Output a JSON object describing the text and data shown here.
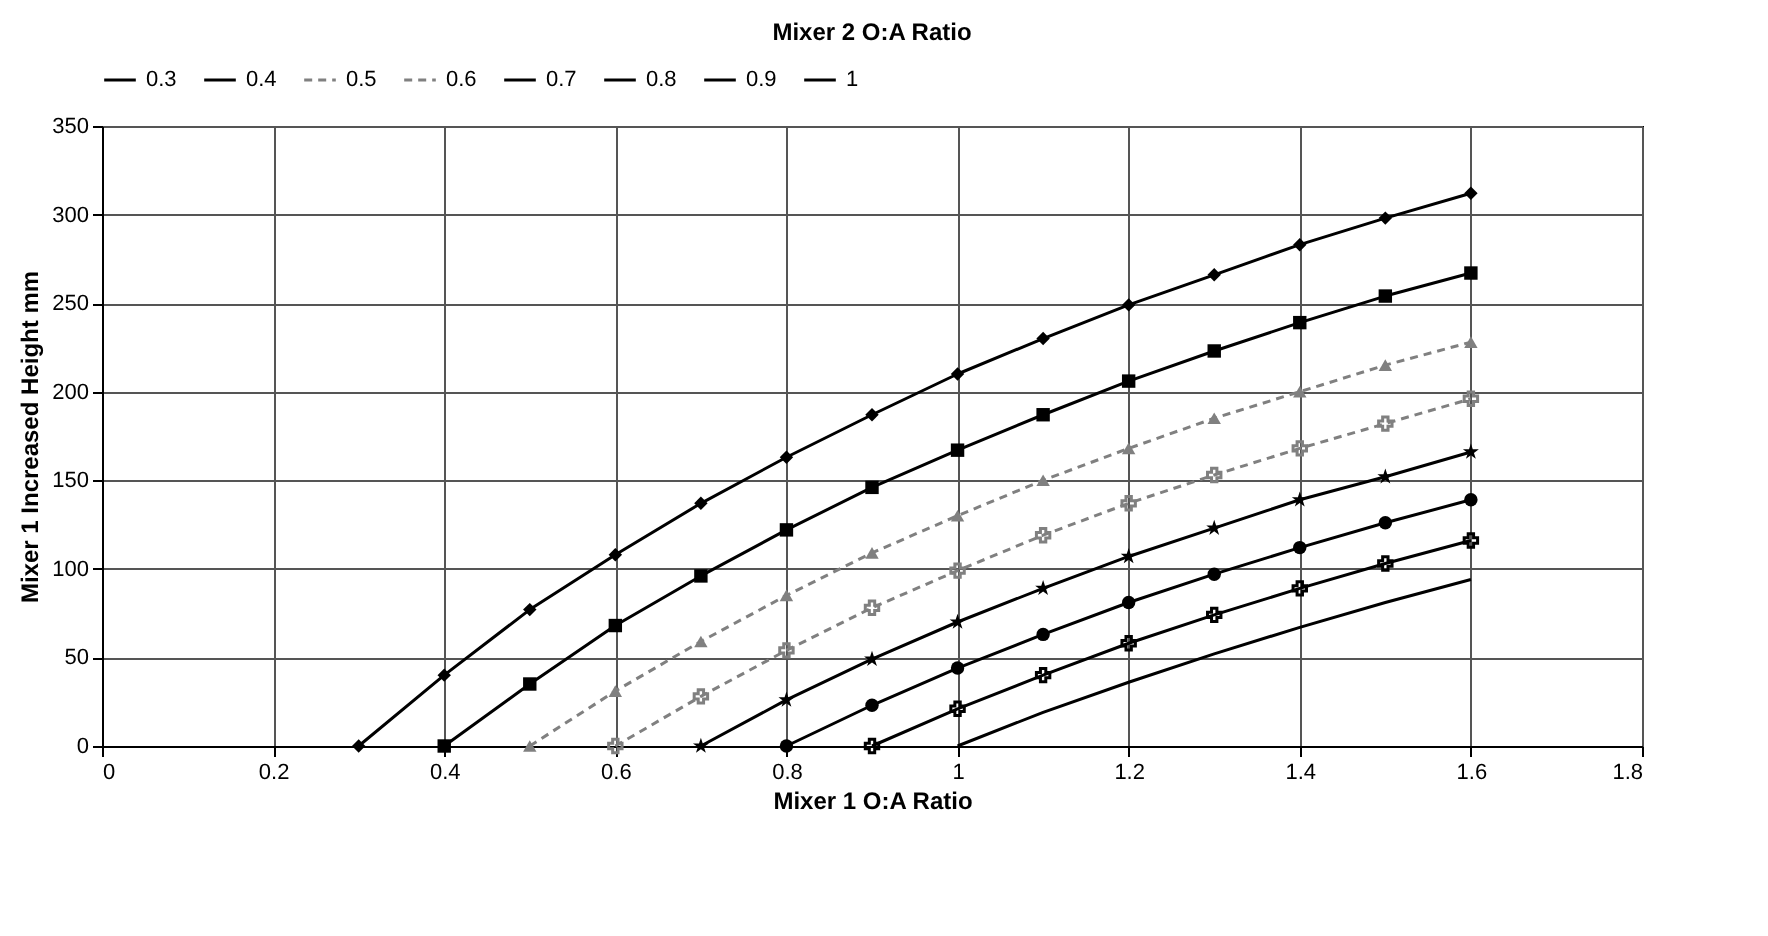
{
  "chart_data": {
    "type": "line",
    "title": "Mixer 2 O:A Ratio",
    "xlabel": "Mixer 1 O:A Ratio",
    "ylabel": "Mixer 1 Increased Height mm",
    "xlim": [
      0,
      1.8
    ],
    "xticks": [
      0,
      0.2,
      0.4,
      0.6,
      0.8,
      1,
      1.2,
      1.4,
      1.6,
      1.8
    ],
    "ylim": [
      0,
      350
    ],
    "yticks": [
      0,
      50,
      100,
      150,
      200,
      250,
      300,
      350
    ],
    "grid": true,
    "legend": "top",
    "series": [
      {
        "name": "0.3",
        "color": "#000000",
        "marker": "diamond",
        "line_style": "solid",
        "x": [
          0.3,
          0.4,
          0.5,
          0.6,
          0.7,
          0.8,
          0.9,
          1,
          1.1,
          1.2,
          1.3,
          1.4,
          1.5,
          1.6
        ],
        "values": [
          0,
          40,
          77,
          108,
          137,
          163,
          187,
          210,
          230,
          249,
          266,
          283,
          298,
          312
        ]
      },
      {
        "name": "0.4",
        "color": "#000000",
        "marker": "square",
        "line_style": "solid",
        "x": [
          0.4,
          0.5,
          0.6,
          0.7,
          0.8,
          0.9,
          1,
          1.1,
          1.2,
          1.3,
          1.4,
          1.5,
          1.6
        ],
        "values": [
          0,
          35,
          68,
          96,
          122,
          146,
          167,
          187,
          206,
          223,
          239,
          254,
          267
        ]
      },
      {
        "name": "0.5",
        "color": "#808080",
        "marker": "triangle",
        "line_style": "dashed",
        "x": [
          0.5,
          0.6,
          0.7,
          0.8,
          0.9,
          1,
          1.1,
          1.2,
          1.3,
          1.4,
          1.5,
          1.6
        ],
        "values": [
          0,
          31,
          59,
          85,
          109,
          130,
          150,
          168,
          185,
          200,
          215,
          228
        ]
      },
      {
        "name": "0.6",
        "color": "#808080",
        "marker": "cross",
        "line_style": "dashed",
        "x": [
          0.6,
          0.7,
          0.8,
          0.9,
          1,
          1.1,
          1.2,
          1.3,
          1.4,
          1.5,
          1.6
        ],
        "values": [
          0,
          28,
          54,
          78,
          99,
          119,
          137,
          153,
          168,
          182,
          196
        ]
      },
      {
        "name": "0.7",
        "color": "#000000",
        "marker": "star",
        "line_style": "solid",
        "x": [
          0.7,
          0.8,
          0.9,
          1,
          1.1,
          1.2,
          1.3,
          1.4,
          1.5,
          1.6
        ],
        "values": [
          0,
          26,
          49,
          70,
          89,
          107,
          123,
          139,
          152,
          166
        ]
      },
      {
        "name": "0.8",
        "color": "#000000",
        "marker": "circle",
        "line_style": "solid",
        "x": [
          0.8,
          0.9,
          1,
          1.1,
          1.2,
          1.3,
          1.4,
          1.5,
          1.6
        ],
        "values": [
          0,
          23,
          44,
          63,
          81,
          97,
          112,
          126,
          139
        ]
      },
      {
        "name": "0.9",
        "color": "#000000",
        "marker": "cross",
        "line_style": "solid",
        "x": [
          0.9,
          1,
          1.1,
          1.2,
          1.3,
          1.4,
          1.5,
          1.6
        ],
        "values": [
          0,
          21,
          40,
          58,
          74,
          89,
          103,
          116
        ]
      },
      {
        "name": "1",
        "color": "#000000",
        "marker": "none",
        "line_style": "solid",
        "x": [
          1,
          1.1,
          1.2,
          1.3,
          1.4,
          1.5,
          1.6
        ],
        "values": [
          0,
          19,
          36,
          52,
          67,
          81,
          94
        ]
      }
    ]
  }
}
